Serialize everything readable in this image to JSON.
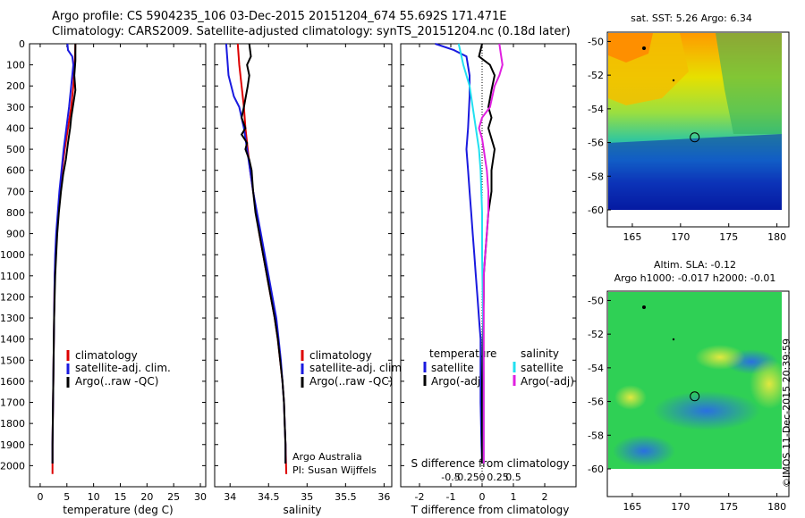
{
  "header": {
    "line1": "Argo profile: CS 5904235_106 03-Dec-2015 20151204_674 55.692S 171.471E",
    "line2": "Climatology: CARS2009. Satellite-adjusted climatology: synTS_20151204.nc (0.18d later)"
  },
  "colors": {
    "climatology": "#dd0000",
    "satellite": "#1a1adf",
    "argo": "#000000",
    "satellite_salinity": "#22e0f0",
    "argo_salinity": "#e020e0"
  },
  "chart_data": [
    {
      "type": "line",
      "panel": "temperature",
      "xlabel": "temperature (deg C)",
      "xlim": [
        -2,
        31
      ],
      "xticks": [
        "0",
        "5",
        "10",
        "15",
        "20",
        "25",
        "30"
      ],
      "ylim": [
        2100,
        0
      ],
      "yticks": [
        "0",
        "100",
        "200",
        "300",
        "400",
        "500",
        "600",
        "700",
        "800",
        "900",
        "1000",
        "1100",
        "1200",
        "1300",
        "1400",
        "1500",
        "1600",
        "1700",
        "1800",
        "1900",
        "2000"
      ],
      "legend": [
        "climatology",
        "satellite-adj. clim.",
        "Argo(..raw -QC)"
      ],
      "series": [
        {
          "name": "climatology",
          "color": "#dd0000",
          "points": [
            [
              6.6,
              0
            ],
            [
              6.5,
              80
            ],
            [
              6.2,
              200
            ],
            [
              5.8,
              300
            ],
            [
              5.2,
              400
            ],
            [
              4.6,
              500
            ],
            [
              4.1,
              600
            ],
            [
              3.7,
              700
            ],
            [
              3.4,
              800
            ],
            [
              3.1,
              900
            ],
            [
              2.9,
              1000
            ],
            [
              2.7,
              1100
            ],
            [
              2.6,
              1300
            ],
            [
              2.5,
              1500
            ],
            [
              2.4,
              1700
            ],
            [
              2.3,
              1900
            ],
            [
              2.3,
              2040
            ]
          ]
        },
        {
          "name": "satellite-adj. clim.",
          "color": "#1a1adf",
          "points": [
            [
              5.1,
              0
            ],
            [
              5.2,
              30
            ],
            [
              6.0,
              60
            ],
            [
              6.2,
              100
            ],
            [
              5.8,
              200
            ],
            [
              5.4,
              300
            ],
            [
              4.9,
              400
            ],
            [
              4.4,
              500
            ],
            [
              4.0,
              600
            ],
            [
              3.6,
              700
            ],
            [
              3.3,
              800
            ],
            [
              3.0,
              900
            ],
            [
              2.8,
              1000
            ],
            [
              2.7,
              1100
            ],
            [
              2.6,
              1300
            ],
            [
              2.5,
              1500
            ],
            [
              2.4,
              1700
            ],
            [
              2.3,
              1900
            ],
            [
              2.3,
              1990
            ]
          ]
        },
        {
          "name": "Argo(..raw -QC)",
          "color": "#000000",
          "points": [
            [
              6.6,
              0
            ],
            [
              6.6,
              80
            ],
            [
              6.4,
              150
            ],
            [
              6.6,
              220
            ],
            [
              6.1,
              300
            ],
            [
              5.8,
              350
            ],
            [
              5.6,
              400
            ],
            [
              5.2,
              470
            ],
            [
              4.8,
              550
            ],
            [
              4.3,
              620
            ],
            [
              3.9,
              700
            ],
            [
              3.5,
              800
            ],
            [
              3.2,
              900
            ],
            [
              3.0,
              1000
            ],
            [
              2.8,
              1100
            ],
            [
              2.6,
              1300
            ],
            [
              2.5,
              1500
            ],
            [
              2.4,
              1700
            ],
            [
              2.3,
              1900
            ],
            [
              2.3,
              1990
            ]
          ]
        }
      ]
    },
    {
      "type": "line",
      "panel": "salinity",
      "xlabel": "salinity",
      "xlim": [
        33.8,
        36.1
      ],
      "xticks": [
        "34",
        "34.5",
        "35",
        "35.5",
        "36"
      ],
      "ylim": [
        2100,
        0
      ],
      "legend": [
        "climatology",
        "satellite-adj. clim.",
        "Argo(..raw -QC)"
      ],
      "annotations": [
        "Argo Australia",
        "PI: Susan Wijffels"
      ],
      "series": [
        {
          "name": "climatology",
          "color": "#dd0000",
          "points": [
            [
              34.1,
              0
            ],
            [
              34.12,
              100
            ],
            [
              34.15,
              200
            ],
            [
              34.18,
              300
            ],
            [
              34.2,
              400
            ],
            [
              34.23,
              500
            ],
            [
              34.26,
              600
            ],
            [
              34.3,
              700
            ],
            [
              34.34,
              800
            ],
            [
              34.38,
              900
            ],
            [
              34.43,
              1000
            ],
            [
              34.48,
              1100
            ],
            [
              34.53,
              1200
            ],
            [
              34.58,
              1300
            ],
            [
              34.62,
              1400
            ],
            [
              34.65,
              1500
            ],
            [
              34.68,
              1600
            ],
            [
              34.7,
              1700
            ],
            [
              34.71,
              1800
            ],
            [
              34.72,
              1900
            ],
            [
              34.73,
              2040
            ]
          ]
        },
        {
          "name": "satellite-adj. clim.",
          "color": "#1a1adf",
          "points": [
            [
              33.95,
              0
            ],
            [
              33.98,
              150
            ],
            [
              34.05,
              250
            ],
            [
              34.12,
              300
            ],
            [
              34.18,
              400
            ],
            [
              34.22,
              500
            ],
            [
              34.26,
              600
            ],
            [
              34.3,
              700
            ],
            [
              34.35,
              800
            ],
            [
              34.4,
              900
            ],
            [
              34.45,
              1000
            ],
            [
              34.5,
              1100
            ],
            [
              34.55,
              1200
            ],
            [
              34.6,
              1300
            ],
            [
              34.63,
              1400
            ],
            [
              34.66,
              1500
            ],
            [
              34.68,
              1600
            ],
            [
              34.7,
              1700
            ],
            [
              34.71,
              1800
            ],
            [
              34.72,
              1900
            ],
            [
              34.72,
              1990
            ]
          ]
        },
        {
          "name": "Argo(..raw -QC)",
          "color": "#000000",
          "points": [
            [
              34.25,
              0
            ],
            [
              34.27,
              60
            ],
            [
              34.22,
              100
            ],
            [
              34.25,
              150
            ],
            [
              34.23,
              200
            ],
            [
              34.18,
              300
            ],
            [
              34.15,
              350
            ],
            [
              34.2,
              400
            ],
            [
              34.15,
              430
            ],
            [
              34.22,
              470
            ],
            [
              34.2,
              500
            ],
            [
              34.25,
              550
            ],
            [
              34.28,
              600
            ],
            [
              34.3,
              700
            ],
            [
              34.33,
              800
            ],
            [
              34.38,
              900
            ],
            [
              34.43,
              1000
            ],
            [
              34.48,
              1100
            ],
            [
              34.53,
              1200
            ],
            [
              34.58,
              1300
            ],
            [
              34.62,
              1400
            ],
            [
              34.65,
              1500
            ],
            [
              34.68,
              1600
            ],
            [
              34.7,
              1700
            ],
            [
              34.71,
              1800
            ],
            [
              34.72,
              1900
            ],
            [
              34.72,
              1990
            ]
          ]
        }
      ]
    },
    {
      "type": "line",
      "panel": "differences",
      "xlabel": "T difference from climatology",
      "xlabel_top": "S difference from climatology",
      "xlim": [
        -2.6,
        3.0
      ],
      "xticks": [
        "-2",
        "-1",
        "0",
        "1",
        "2"
      ],
      "xticks_top": [
        "-0.5",
        "-0.25",
        "0",
        "0.25",
        "0.5"
      ],
      "ylim": [
        2100,
        0
      ],
      "legend_left_title": "temperature",
      "legend_right_title": "salinity",
      "legend": [
        "satellite",
        "Argo(-adj)",
        "satellite",
        "Argo(-adj)"
      ],
      "series": [
        {
          "name": "satellite",
          "quantity": "temperature",
          "color": "#1a1adf",
          "points": [
            [
              -1.5,
              0
            ],
            [
              -0.9,
              30
            ],
            [
              -0.5,
              60
            ],
            [
              -0.4,
              150
            ],
            [
              -0.4,
              250
            ],
            [
              -0.45,
              400
            ],
            [
              -0.5,
              500
            ],
            [
              -0.45,
              600
            ],
            [
              -0.4,
              700
            ],
            [
              -0.35,
              800
            ],
            [
              -0.3,
              900
            ],
            [
              -0.25,
              1000
            ],
            [
              -0.2,
              1100
            ],
            [
              -0.15,
              1200
            ],
            [
              -0.1,
              1300
            ],
            [
              -0.05,
              1400
            ],
            [
              -0.05,
              1500
            ],
            [
              -0.05,
              1700
            ],
            [
              -0.02,
              1900
            ],
            [
              0,
              1990
            ]
          ]
        },
        {
          "name": "Argo(-adj)",
          "quantity": "temperature",
          "color": "#000000",
          "points": [
            [
              0,
              0
            ],
            [
              -0.1,
              60
            ],
            [
              0.25,
              100
            ],
            [
              0.4,
              150
            ],
            [
              0.3,
              220
            ],
            [
              0.2,
              300
            ],
            [
              0.3,
              350
            ],
            [
              0.2,
              400
            ],
            [
              0.3,
              450
            ],
            [
              0.4,
              500
            ],
            [
              0.3,
              600
            ],
            [
              0.3,
              700
            ],
            [
              0.2,
              800
            ],
            [
              0.15,
              900
            ],
            [
              0.1,
              1000
            ],
            [
              0.05,
              1100
            ],
            [
              0.05,
              1200
            ],
            [
              0.02,
              1400
            ],
            [
              0.0,
              1600
            ],
            [
              0.0,
              1990
            ]
          ]
        },
        {
          "name": "satellite",
          "quantity": "salinity",
          "color": "#22e0f0",
          "points": [
            [
              -0.75,
              0
            ],
            [
              -0.6,
              100
            ],
            [
              -0.4,
              200
            ],
            [
              -0.3,
              300
            ],
            [
              -0.2,
              400
            ],
            [
              -0.1,
              500
            ],
            [
              -0.05,
              600
            ],
            [
              0.0,
              800
            ],
            [
              0.0,
              1000
            ],
            [
              0.02,
              1200
            ],
            [
              0.04,
              1400
            ],
            [
              0.05,
              1600
            ],
            [
              0.05,
              1800
            ],
            [
              0.05,
              1990
            ]
          ]
        },
        {
          "name": "Argo(-adj)",
          "quantity": "salinity",
          "color": "#e020e0",
          "points": [
            [
              0.55,
              0
            ],
            [
              0.6,
              50
            ],
            [
              0.65,
              100
            ],
            [
              0.55,
              150
            ],
            [
              0.4,
              200
            ],
            [
              0.25,
              300
            ],
            [
              0.0,
              350
            ],
            [
              -0.1,
              400
            ],
            [
              0.0,
              450
            ],
            [
              0.05,
              500
            ],
            [
              0.1,
              550
            ],
            [
              0.15,
              600
            ],
            [
              0.2,
              700
            ],
            [
              0.2,
              800
            ],
            [
              0.15,
              900
            ],
            [
              0.1,
              1000
            ],
            [
              0.05,
              1100
            ],
            [
              0.05,
              1200
            ],
            [
              0.05,
              1400
            ],
            [
              0.05,
              1600
            ],
            [
              0.05,
              1990
            ]
          ]
        }
      ]
    },
    {
      "type": "heatmap",
      "panel": "sst-map",
      "title": "sat. SST: 5.26  Argo: 6.34",
      "xlim": [
        162.5,
        180.5
      ],
      "ylim": [
        -60,
        -49.5
      ],
      "xticks": [
        "165",
        "170",
        "175",
        "180"
      ],
      "yticks": [
        "-50",
        "-52",
        "-54",
        "-56",
        "-58",
        "-60"
      ],
      "argo_position": [
        171.471,
        -55.692
      ]
    },
    {
      "type": "heatmap",
      "panel": "sla-map",
      "title_line1": "Altim. SLA: -0.12",
      "title_line2": "Argo h1000: -0.017 h2000: -0.01",
      "xlim": [
        162.5,
        180.5
      ],
      "ylim": [
        -60,
        -49.5
      ],
      "xticks": [
        "165",
        "170",
        "175",
        "180"
      ],
      "yticks": [
        "-50",
        "-52",
        "-54",
        "-56",
        "-58",
        "-60"
      ],
      "argo_position": [
        171.471,
        -55.692
      ]
    }
  ],
  "footer": {
    "credit": "©IMOS 11-Dec-2015 20:39:59"
  }
}
